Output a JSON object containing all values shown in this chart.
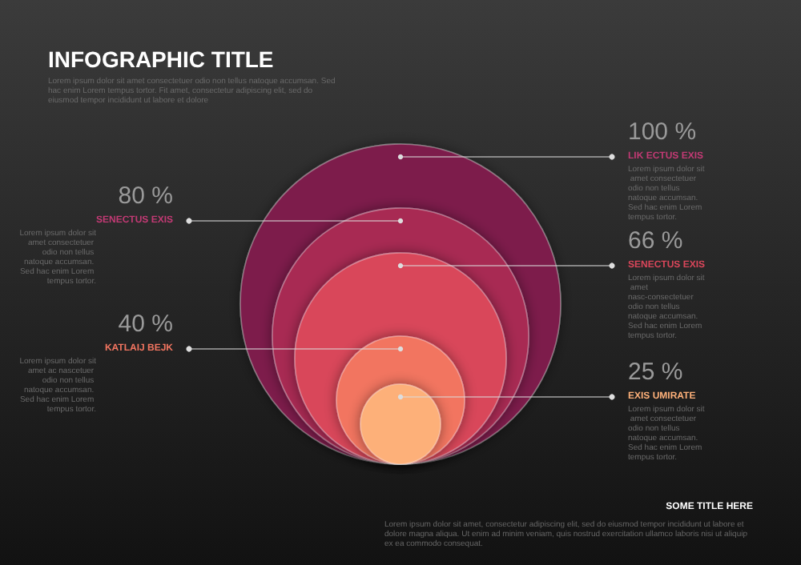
{
  "chart_data": {
    "type": "other",
    "title": "INFOGRAPHIC TITLE",
    "subtitle": "Lorem ipsum dolor sit amet consectetuer odio non tellus natoque accumsan. Sed hac enim Lorem tempus tortor. Fit amet, consectetur adipiscing elit, sed do eiusmod tempor incididunt ut labore et dolore",
    "categories": [
      "LIK ECTUS EXIS",
      "SENECTUS EXIS",
      "SENECTUS EXIS",
      "KATLAIJ BEJK",
      "EXIS UMIRATE"
    ],
    "values": [
      100,
      80,
      66,
      40,
      25
    ],
    "value_labels": [
      "100 %",
      "80 %",
      "66 %",
      "40 %",
      "25 %"
    ],
    "colors": [
      "#7d1f4c",
      "#a82a52",
      "#d9465a",
      "#f27560",
      "#fdb079"
    ],
    "annotations": [
      "Lorem ipsum dolor sit amet consectetuer odio non tellus natoque accumsan. Sed hac enim Lorem tempus tortor.",
      "Lorem ipsum dolor sit amet consectetuer odio non tellus natoque accumsan. Sed hac enim Lorem tempus tortor.",
      "Lorem ipsum dolor sit amet nasc-consectetuer odio non tellus natoque accumsan. Sed hac enim Lorem tempus tortor.",
      "Lorem ipsum dolor sit amet ac nascetuer odio non tellus natoque accumsan. Sed hac enim Lorem tempus tortor.",
      "Lorem ipsum dolor sit amet consectetuer odio non tellus natoque accumsan. Sed hac enim Lorem tempus tortor.",
      "SOME TITLE HERE",
      "Lorem ipsum dolor sit amet, consectetur adipiscing elit, sed do eiusmod tempor incididunt ut labore et dolore magna aliqua. Ut enim ad minim veniam, quis nostrud exercitation ullamco laboris nisi ut aliquip ex ea commodo consequat."
    ]
  }
}
